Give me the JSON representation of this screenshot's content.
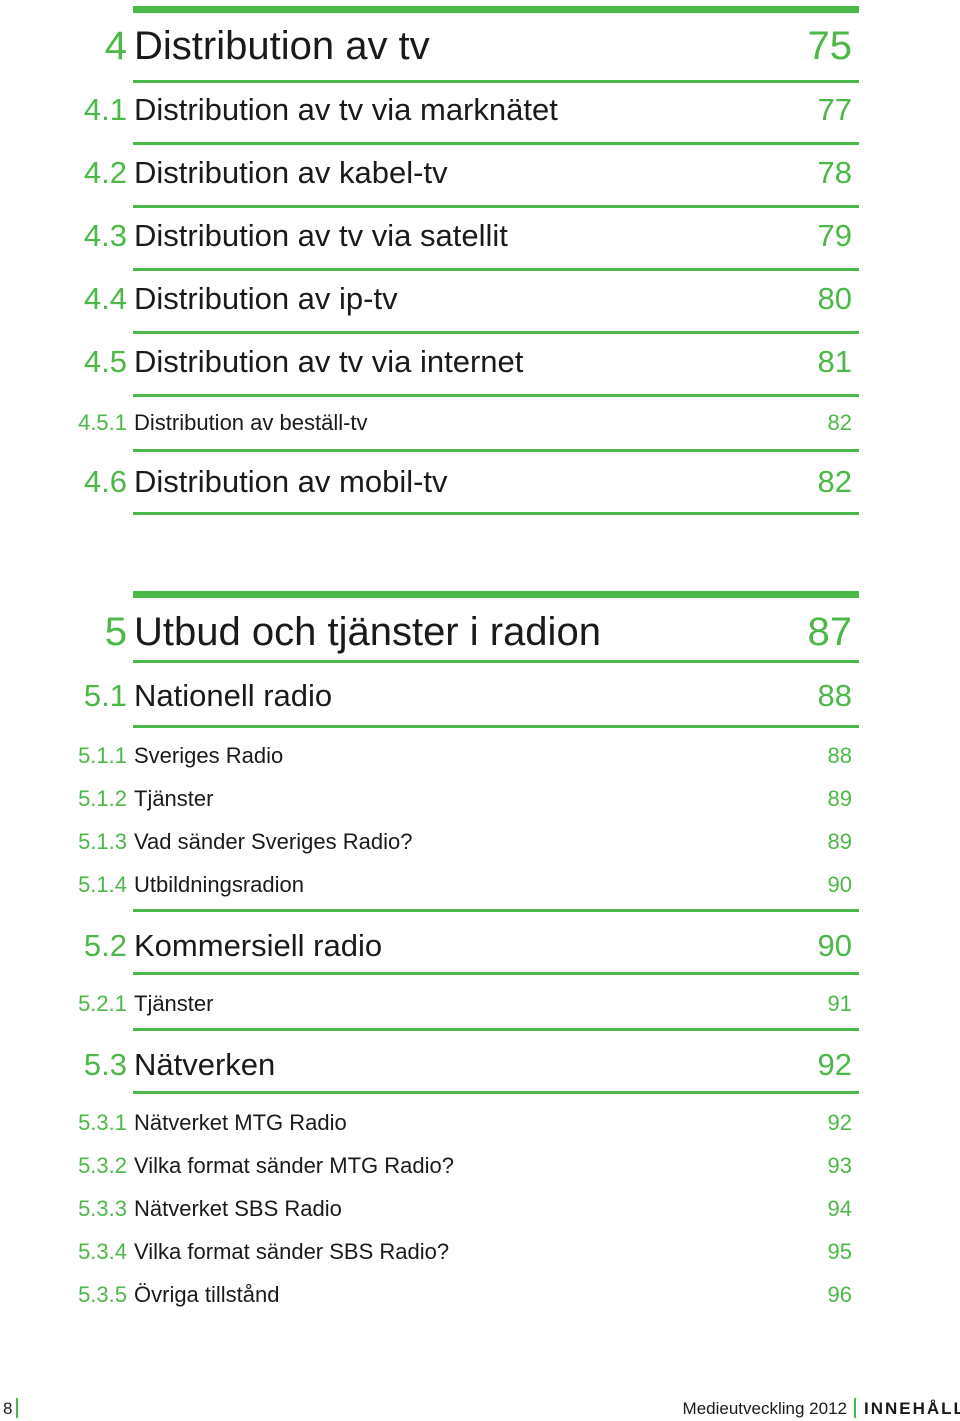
{
  "colors": {
    "accent": "#4cb848",
    "text": "#1a1a1a"
  },
  "toc": [
    {
      "entries": [
        {
          "level": "chapter",
          "num": "4",
          "title": "Distribution av tv",
          "page": "75"
        },
        {
          "level": "section",
          "num": "4.1",
          "title": "Distribution av tv via marknätet",
          "page": "77"
        },
        {
          "level": "section",
          "num": "4.2",
          "title": "Distribution av kabel-tv",
          "page": "78"
        },
        {
          "level": "section",
          "num": "4.3",
          "title": "Distribution av tv via satellit",
          "page": "79"
        },
        {
          "level": "section",
          "num": "4.4",
          "title": "Distribution av ip-tv",
          "page": "80"
        },
        {
          "level": "section",
          "num": "4.5",
          "title": "Distribution av tv via internet",
          "page": "81"
        },
        {
          "level": "sub",
          "num": "4.5.1",
          "title": "Distribution av beställ-tv",
          "page": "82"
        },
        {
          "level": "section",
          "num": "4.6",
          "title": "Distribution av mobil-tv",
          "page": "82"
        }
      ]
    },
    {
      "entries": [
        {
          "level": "chapter",
          "num": "5",
          "title": "Utbud och tjänster i radion",
          "page": "87"
        },
        {
          "level": "section",
          "num": "5.1",
          "title": "Nationell radio",
          "page": "88"
        },
        {
          "level": "sub",
          "num": "5.1.1",
          "title": "Sveriges Radio",
          "page": "88"
        },
        {
          "level": "sub",
          "num": "5.1.2",
          "title": "Tjänster",
          "page": "89"
        },
        {
          "level": "sub",
          "num": "5.1.3",
          "title": "Vad sänder Sveriges Radio?",
          "page": "89"
        },
        {
          "level": "sub",
          "num": "5.1.4",
          "title": "Utbildningsradion",
          "page": "90"
        },
        {
          "level": "section",
          "num": "5.2",
          "title": "Kommersiell radio",
          "page": "90"
        },
        {
          "level": "sub",
          "num": "5.2.1",
          "title": "Tjänster",
          "page": "91"
        },
        {
          "level": "section",
          "num": "5.3",
          "title": "Nätverken",
          "page": "92"
        },
        {
          "level": "sub",
          "num": "5.3.1",
          "title": "Nätverket MTG Radio",
          "page": "92"
        },
        {
          "level": "sub",
          "num": "5.3.2",
          "title": "Vilka format sänder MTG Radio?",
          "page": "93"
        },
        {
          "level": "sub",
          "num": "5.3.3",
          "title": "Nätverket SBS Radio",
          "page": "94"
        },
        {
          "level": "sub",
          "num": "5.3.4",
          "title": "Vilka format sänder SBS Radio?",
          "page": "95"
        },
        {
          "level": "sub",
          "num": "5.3.5",
          "title": "Övriga tillstånd",
          "page": "96"
        }
      ]
    }
  ],
  "footer": {
    "page_number": "8",
    "publication": "Medieutveckling 2012",
    "section_label": "INNEHÅLL"
  }
}
